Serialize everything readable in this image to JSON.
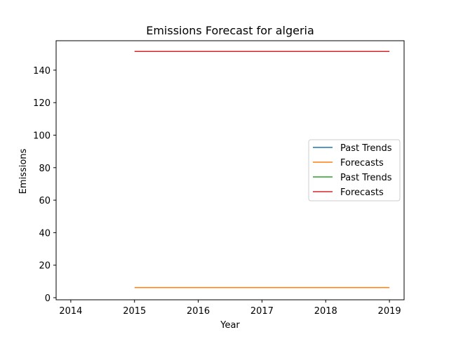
{
  "chart_data": {
    "type": "line",
    "title": "Emissions Forecast for algeria",
    "xlabel": "Year",
    "ylabel": "Emissions",
    "xlim": [
      2013.77,
      2019.23
    ],
    "ylim": [
      -1.3,
      158.1
    ],
    "xticks": [
      2014,
      2015,
      2016,
      2017,
      2018,
      2019
    ],
    "yticks": [
      0,
      20,
      40,
      60,
      80,
      100,
      120,
      140
    ],
    "grid": false,
    "legend_position": "center-right",
    "series": [
      {
        "name": "Past Trends",
        "color": "#1f77b4",
        "x": [],
        "y": []
      },
      {
        "name": "Forecasts",
        "color": "#ff7f0e",
        "x": [
          2015,
          2016,
          2017,
          2018,
          2019
        ],
        "y": [
          6.2,
          6.2,
          6.2,
          6.2,
          6.2
        ]
      },
      {
        "name": "Past Trends",
        "color": "#2ca02c",
        "x": [],
        "y": []
      },
      {
        "name": "Forecasts",
        "color": "#d62728",
        "x": [
          2015,
          2016,
          2017,
          2018,
          2019
        ],
        "y": [
          151.5,
          151.5,
          151.5,
          151.5,
          151.5
        ]
      }
    ]
  }
}
